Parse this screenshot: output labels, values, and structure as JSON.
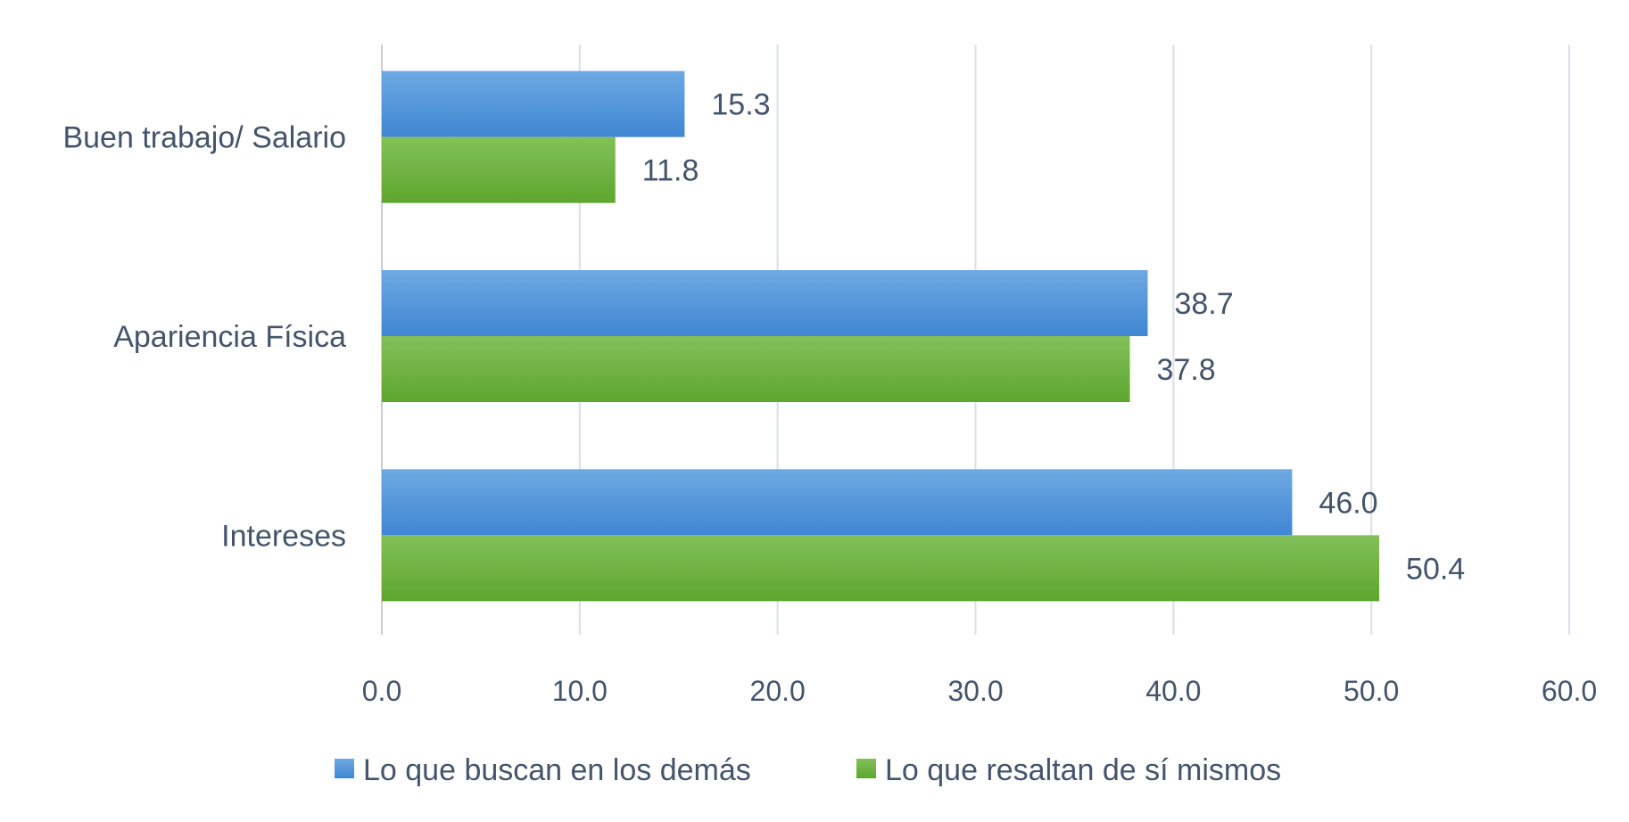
{
  "chart_data": {
    "type": "bar",
    "orientation": "horizontal",
    "categories": [
      "Buen trabajo/ Salario",
      "Apariencia Física",
      "Intereses"
    ],
    "series": [
      {
        "name": "Lo que buscan en los demás",
        "values": [
          15.3,
          38.7,
          46.0
        ],
        "color": "#4a8fd6"
      },
      {
        "name": "Lo que resaltan de sí mismos",
        "values": [
          11.8,
          37.8,
          50.4
        ],
        "color": "#6cb33f"
      }
    ],
    "xlim": [
      0,
      60
    ],
    "xticks": [
      0,
      10,
      20,
      30,
      40,
      50,
      60
    ],
    "tick_format_decimals": 1,
    "value_label_decimals": 1,
    "grid": "vertical",
    "legend": "bottom",
    "title": "",
    "xlabel": "",
    "ylabel": ""
  }
}
